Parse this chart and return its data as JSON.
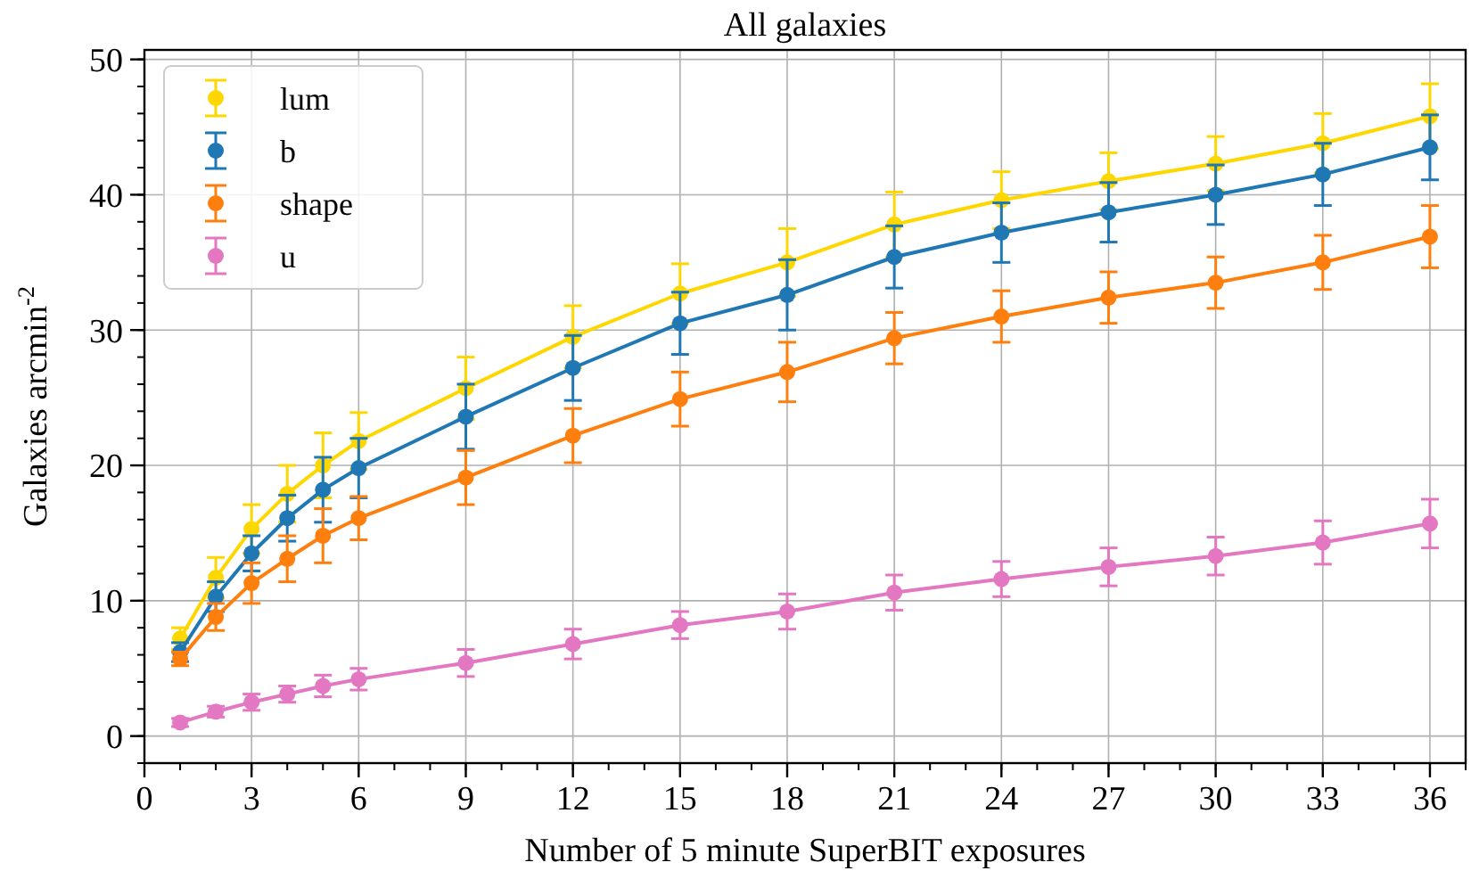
{
  "chart_data": {
    "type": "line",
    "title": "All galaxies",
    "xlabel": "Number of 5 minute SuperBIT exposures",
    "ylabel": "Galaxies arcmin$^{-2}$",
    "x": [
      1,
      2,
      3,
      4,
      5,
      6,
      9,
      12,
      15,
      18,
      21,
      24,
      27,
      30,
      33,
      36
    ],
    "series": [
      {
        "name": "lum",
        "color": "#ffd700",
        "values": [
          7.2,
          11.7,
          15.3,
          17.9,
          20.0,
          21.8,
          25.7,
          29.5,
          32.7,
          35.0,
          37.8,
          39.6,
          41.0,
          42.3,
          43.8,
          45.8
        ],
        "errors": [
          0.8,
          1.5,
          1.8,
          2.1,
          2.4,
          2.1,
          2.3,
          2.3,
          2.2,
          2.5,
          2.4,
          2.1,
          2.1,
          2.0,
          2.2,
          2.4
        ]
      },
      {
        "name": "b",
        "color": "#1f77b4",
        "values": [
          6.2,
          10.3,
          13.5,
          16.1,
          18.2,
          19.8,
          23.6,
          27.2,
          30.5,
          32.6,
          35.4,
          37.2,
          38.7,
          40.0,
          41.5,
          43.5
        ],
        "errors": [
          0.7,
          1.1,
          1.3,
          1.7,
          2.4,
          2.2,
          2.4,
          2.4,
          2.3,
          2.6,
          2.3,
          2.2,
          2.2,
          2.2,
          2.3,
          2.4
        ]
      },
      {
        "name": "shape",
        "color": "#ff7f0e",
        "values": [
          5.7,
          8.8,
          11.3,
          13.1,
          14.8,
          16.1,
          19.1,
          22.2,
          24.9,
          26.9,
          29.4,
          31.0,
          32.4,
          33.5,
          35.0,
          36.9
        ],
        "errors": [
          0.5,
          1.0,
          1.5,
          1.7,
          2.0,
          1.6,
          2.0,
          2.0,
          2.0,
          2.2,
          1.9,
          1.9,
          1.9,
          1.9,
          2.0,
          2.3
        ]
      },
      {
        "name": "u",
        "color": "#e377c2",
        "values": [
          1.0,
          1.8,
          2.5,
          3.1,
          3.7,
          4.2,
          5.4,
          6.8,
          8.2,
          9.2,
          10.6,
          11.6,
          12.5,
          13.3,
          14.3,
          15.7
        ],
        "errors": [
          0.3,
          0.4,
          0.6,
          0.6,
          0.8,
          0.8,
          1.0,
          1.1,
          1.0,
          1.3,
          1.3,
          1.3,
          1.4,
          1.4,
          1.6,
          1.8
        ]
      }
    ],
    "xlim": [
      0,
      37
    ],
    "xticks": [
      0,
      3,
      6,
      9,
      12,
      15,
      18,
      21,
      24,
      27,
      30,
      33,
      36
    ],
    "ylim": [
      -2,
      50.7
    ],
    "yticks": [
      0,
      10,
      20,
      30,
      40,
      50
    ],
    "grid": true,
    "legend": "top left",
    "marker": "circle",
    "line_style": "solid"
  }
}
